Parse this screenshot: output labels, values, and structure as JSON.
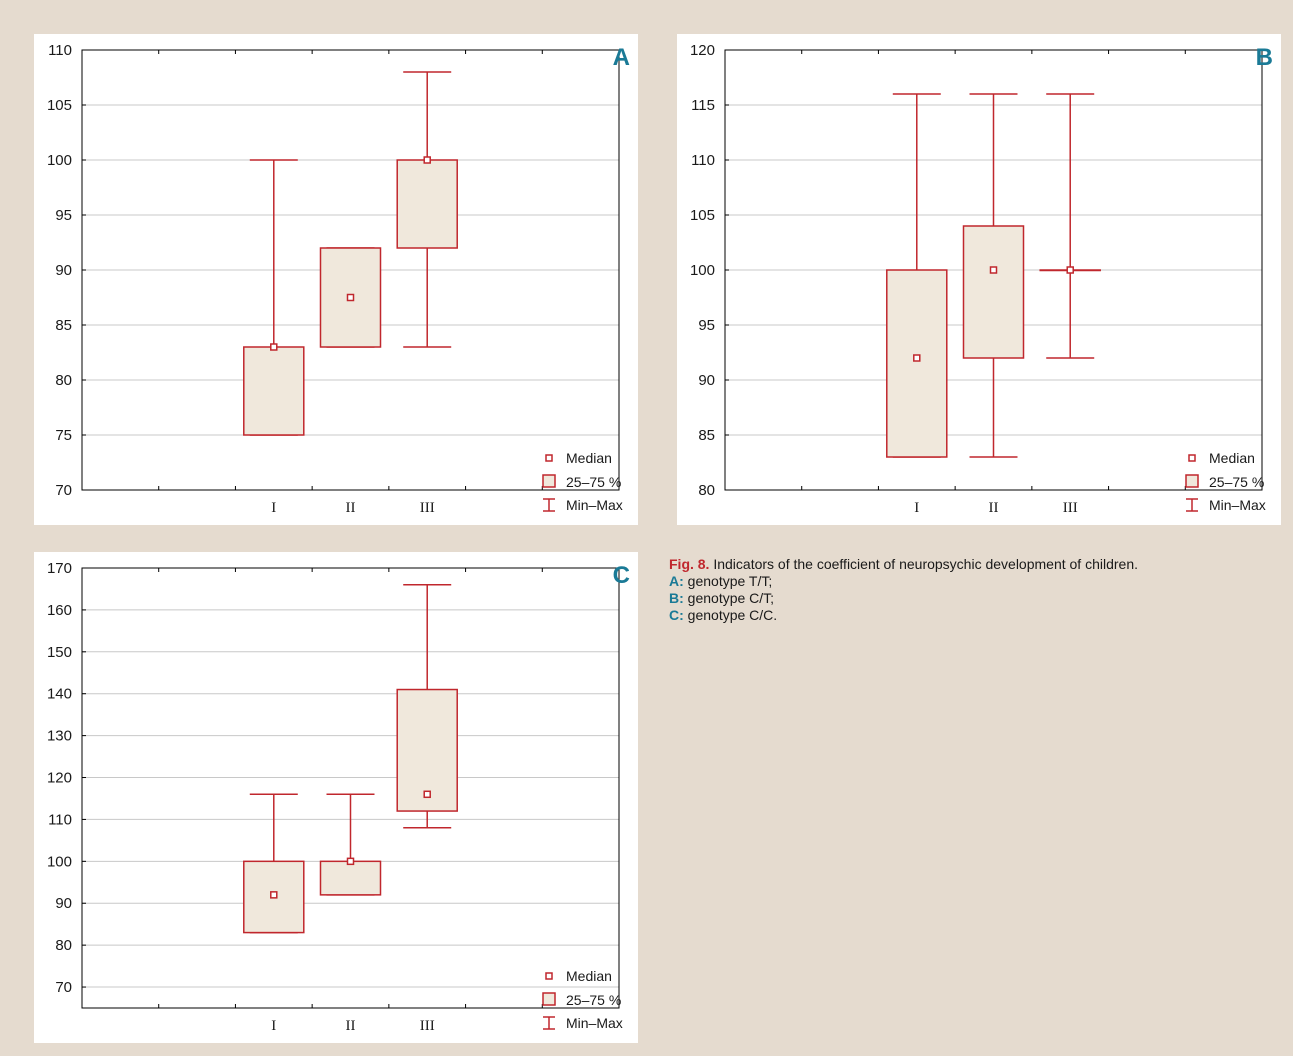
{
  "chart_data": [
    {
      "type": "boxplot",
      "panel_letter": "A",
      "categories": [
        "I",
        "II",
        "III"
      ],
      "boxes": [
        {
          "category": "I",
          "min": 75,
          "q1": 75,
          "median": 83,
          "q3": 83,
          "max": 100
        },
        {
          "category": "II",
          "min": 83,
          "q1": 83,
          "median": 87.5,
          "q3": 92,
          "max": 92
        },
        {
          "category": "III",
          "min": 83,
          "q1": 92,
          "median": 100,
          "q3": 100,
          "max": 108
        }
      ],
      "ylim": [
        70,
        110
      ],
      "yticks": [
        70,
        75,
        80,
        85,
        90,
        95,
        100,
        105,
        110
      ],
      "grid": true,
      "legend_position": "bottom-right"
    },
    {
      "type": "boxplot",
      "panel_letter": "B",
      "categories": [
        "I",
        "II",
        "III"
      ],
      "boxes": [
        {
          "category": "I",
          "min": 83,
          "q1": 83,
          "median": 92,
          "q3": 100,
          "max": 116
        },
        {
          "category": "II",
          "min": 83,
          "q1": 92,
          "median": 100,
          "q3": 104,
          "max": 116
        },
        {
          "category": "III",
          "min": 92,
          "q1": 100,
          "median": 100,
          "q3": 100,
          "max": 116
        }
      ],
      "ylim": [
        80,
        120
      ],
      "yticks": [
        80,
        85,
        90,
        95,
        100,
        105,
        110,
        115,
        120
      ],
      "grid": true,
      "legend_position": "bottom-right"
    },
    {
      "type": "boxplot",
      "panel_letter": "C",
      "categories": [
        "I",
        "II",
        "III"
      ],
      "boxes": [
        {
          "category": "I",
          "min": 83,
          "q1": 83,
          "median": 92,
          "q3": 100,
          "max": 116
        },
        {
          "category": "II",
          "min": 92,
          "q1": 92,
          "median": 100,
          "q3": 100,
          "max": 116
        },
        {
          "category": "III",
          "min": 108,
          "q1": 112,
          "median": 116,
          "q3": 141,
          "max": 166
        }
      ],
      "ylim": [
        65,
        170
      ],
      "yticks": [
        70,
        80,
        90,
        100,
        110,
        120,
        130,
        140,
        150,
        160,
        170
      ],
      "grid": true,
      "legend_position": "bottom-right"
    }
  ],
  "legend": {
    "median": "Median",
    "box": "25–75 %",
    "whisker": "Min–Max"
  },
  "colors": {
    "stroke": "#c0272d",
    "box_fill": "#f0e8dc",
    "grid": "#c8c8c8",
    "panel_letter": "#1a7a96",
    "fig_label": "#c0272d"
  },
  "caption": {
    "fig_label": "Fig. 8.",
    "title": " Indicators of the coefficient of neuropsychic development of children.",
    "items": [
      {
        "label": "A:",
        "text": " genotype T/T;"
      },
      {
        "label": "B:",
        "text": " genotype C/T;"
      },
      {
        "label": "C:",
        "text": " genotype C/C."
      }
    ]
  }
}
